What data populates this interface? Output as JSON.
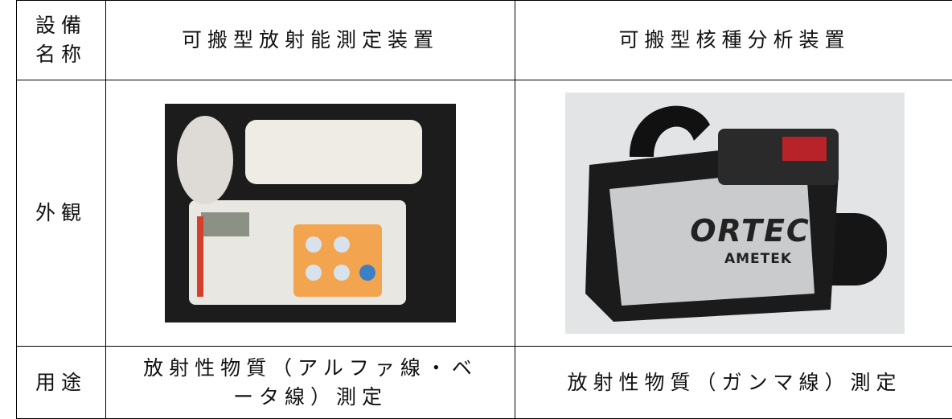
{
  "table": {
    "header": [
      "設備名称",
      "可搬型放射能測定装置",
      "可搬型核種分析装置"
    ],
    "rows": [
      [
        "外観"
      ],
      [
        "用途",
        "放射性物質（アルファ線・ベータ線）測定",
        "放射性物質（ガンマ線）測定"
      ]
    ],
    "photo_texts": [
      "ORTEC",
      "AMETEK"
    ]
  }
}
